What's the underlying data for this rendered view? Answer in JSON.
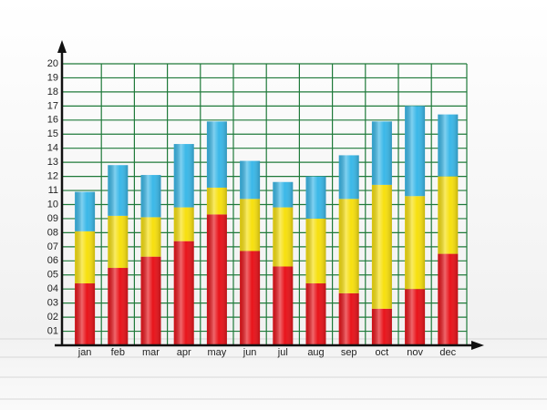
{
  "chart_data": {
    "type": "stacked_bar",
    "categories": [
      "jan",
      "feb",
      "mar",
      "apr",
      "may",
      "jun",
      "jul",
      "aug",
      "sep",
      "oct",
      "nov",
      "dec"
    ],
    "series": [
      {
        "color": "#e8141b",
        "values": [
          4.4,
          5.5,
          6.3,
          7.4,
          9.3,
          6.7,
          5.6,
          4.4,
          3.7,
          2.6,
          4.0,
          6.5
        ]
      },
      {
        "color": "#f7e00f",
        "values": [
          3.7,
          3.7,
          2.8,
          2.4,
          1.9,
          3.7,
          4.2,
          4.6,
          6.7,
          8.8,
          6.6,
          5.5
        ]
      },
      {
        "color": "#3bb8e8",
        "values": [
          2.8,
          3.6,
          3.0,
          4.5,
          4.7,
          2.7,
          1.8,
          3.0,
          3.1,
          4.5,
          6.4,
          4.4
        ]
      }
    ],
    "ylim": [
      0,
      20
    ],
    "yticks": [
      {
        "value": 1,
        "label": "01"
      },
      {
        "value": 2,
        "label": "02"
      },
      {
        "value": 3,
        "label": "03"
      },
      {
        "value": 4,
        "label": "04"
      },
      {
        "value": 5,
        "label": "05"
      },
      {
        "value": 6,
        "label": "06"
      },
      {
        "value": 7,
        "label": "07"
      },
      {
        "value": 8,
        "label": "08"
      },
      {
        "value": 9,
        "label": "09"
      },
      10,
      11,
      12,
      13,
      14,
      15,
      16,
      17,
      18,
      19,
      20
    ],
    "grid": true,
    "grid_color": "#1f7a3a"
  }
}
